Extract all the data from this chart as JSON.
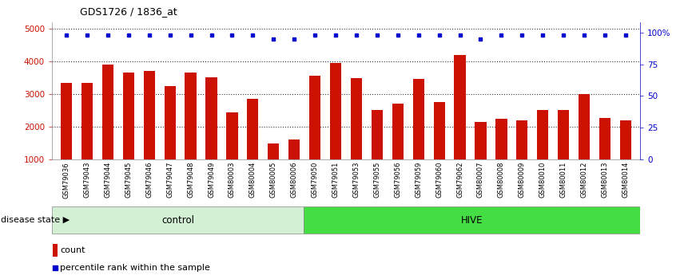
{
  "title": "GDS1726 / 1836_at",
  "categories": [
    "GSM79036",
    "GSM79043",
    "GSM79044",
    "GSM79045",
    "GSM79046",
    "GSM79047",
    "GSM79048",
    "GSM79049",
    "GSM80003",
    "GSM80004",
    "GSM80005",
    "GSM80006",
    "GSM79050",
    "GSM79051",
    "GSM79053",
    "GSM79055",
    "GSM79056",
    "GSM79059",
    "GSM79060",
    "GSM79062",
    "GSM80007",
    "GSM80008",
    "GSM80009",
    "GSM80010",
    "GSM80011",
    "GSM80012",
    "GSM80013",
    "GSM80014"
  ],
  "counts": [
    3350,
    3350,
    3900,
    3650,
    3700,
    3250,
    3650,
    3500,
    2450,
    2850,
    1490,
    1620,
    3550,
    3950,
    3480,
    2500,
    2700,
    3450,
    2750,
    4200,
    2150,
    2250,
    2200,
    2500,
    2500,
    3000,
    2280,
    2200
  ],
  "percentile_ranks": [
    98,
    98,
    98,
    98,
    98,
    98,
    98,
    98,
    98,
    98,
    95,
    95,
    98,
    98,
    98,
    98,
    98,
    98,
    98,
    98,
    95,
    98,
    98,
    98,
    98,
    98,
    98,
    98
  ],
  "n_control": 12,
  "n_total": 28,
  "group_labels": [
    "control",
    "HIVE"
  ],
  "group_colors": [
    "#d4f0d4",
    "#44dd44"
  ],
  "bar_color": "#cc1100",
  "dot_color": "#0000cc",
  "ylim": [
    1000,
    5200
  ],
  "yticks": [
    1000,
    2000,
    3000,
    4000,
    5000
  ],
  "right_yticks": [
    0,
    25,
    50,
    75,
    100
  ],
  "right_ylim": [
    0,
    108.33
  ],
  "tick_label_color_left": "#cc1100",
  "tick_label_color_right": "#0000cc",
  "background_color": "#ffffff",
  "xticklabel_bg": "#d8d8d8",
  "legend_count_label": "count",
  "legend_pct_label": "percentile rank within the sample",
  "disease_state_label": "disease state"
}
